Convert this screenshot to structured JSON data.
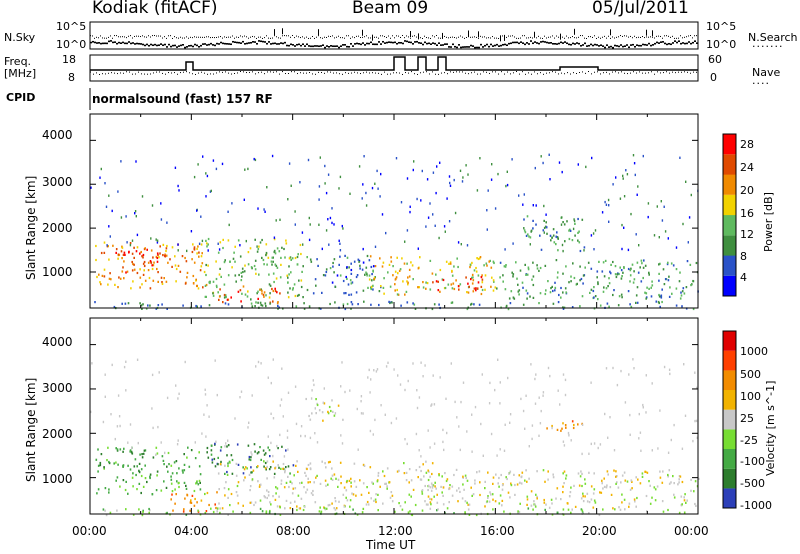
{
  "header": {
    "radar": "Kodiak (fitACF)",
    "beam": "Beam 09",
    "date": "05/Jul/2011",
    "nsky_label": "N.Sky",
    "nsearch_label": "N.Search",
    "nave_label": "Nave",
    "freq_label": "Freq.",
    "freq_unit": "[MHz]",
    "cpid_label": "CPID",
    "cpid_value": "normalsound (fast) 157 RF",
    "noise_ticks_left": [
      "10^5",
      "10^0"
    ],
    "noise_ticks_right": [
      "10^5",
      "10^0"
    ],
    "freq_ticks": [
      "18",
      "8"
    ],
    "nave_ticks": [
      "60",
      "0"
    ]
  },
  "colors": {
    "power": [
      "#0000ff",
      "#2a52c8",
      "#3f8f3f",
      "#5fba5f",
      "#f2d200",
      "#f08a00",
      "#e04a00",
      "#ff0000"
    ],
    "velocity": [
      "#2c3fb8",
      "#2d7d2d",
      "#44aa44",
      "#77dd33",
      "#c8c8c8",
      "#f2b300",
      "#f28c00",
      "#ff4000",
      "#e00000"
    ]
  },
  "chart_data": [
    {
      "type": "heatmap",
      "panel": "power",
      "xlabel": "",
      "ylabel": "Slant Range [km]",
      "yticks": [
        "4000",
        "3000",
        "2000",
        "1000"
      ],
      "ylim": [
        180,
        4600
      ],
      "xlim": [
        "00:00",
        "24:00"
      ],
      "colorbar": {
        "label": "Power [dB]",
        "ticks": [
          "28",
          "24",
          "20",
          "16",
          "12",
          "8",
          "4"
        ],
        "range": [
          0,
          32
        ]
      },
      "blobs": [
        {
          "t0": 0.2,
          "t1": 4.6,
          "r0": 650,
          "r1": 1700,
          "v": 22
        },
        {
          "t0": 1.0,
          "t1": 3.0,
          "r0": 1000,
          "r1": 1550,
          "v": 28
        },
        {
          "t0": 4.5,
          "t1": 8.4,
          "r0": 400,
          "r1": 1800,
          "v": 14
        },
        {
          "t0": 5.0,
          "t1": 7.5,
          "r0": 300,
          "r1": 700,
          "v": 26
        },
        {
          "t0": 8.5,
          "t1": 11.5,
          "r0": 500,
          "r1": 1400,
          "v": 8
        },
        {
          "t0": 11.0,
          "t1": 16.0,
          "r0": 500,
          "r1": 1400,
          "v": 18
        },
        {
          "t0": 13.5,
          "t1": 15.5,
          "r0": 600,
          "r1": 950,
          "v": 27
        },
        {
          "t0": 16.0,
          "t1": 24.0,
          "r0": 400,
          "r1": 1300,
          "v": 11
        },
        {
          "t0": 17.0,
          "t1": 19.5,
          "r0": 1500,
          "r1": 2300,
          "v": 10
        },
        {
          "t0": 0.0,
          "t1": 24.0,
          "r0": 180,
          "r1": 350,
          "v": 9
        }
      ]
    },
    {
      "type": "heatmap",
      "panel": "velocity",
      "xlabel": "Time UT",
      "ylabel": "Slant Range [km]",
      "yticks": [
        "4000",
        "3000",
        "2000",
        "1000"
      ],
      "xticks": [
        "00:00",
        "04:00",
        "08:00",
        "12:00",
        "16:00",
        "20:00",
        "00:00"
      ],
      "ylim": [
        180,
        4600
      ],
      "colorbar": {
        "label": "Velocity [m s^-1]",
        "ticks": [
          "1000",
          "500",
          "100",
          "25",
          "-25",
          "-100",
          "-500",
          "-1000"
        ]
      },
      "blobs": [
        {
          "t0": 0.2,
          "t1": 4.6,
          "r0": 650,
          "r1": 1700,
          "v": 2
        },
        {
          "t0": 4.6,
          "t1": 8.0,
          "r0": 1100,
          "r1": 1800,
          "v": 1
        },
        {
          "t0": 3.0,
          "t1": 5.0,
          "r0": 250,
          "r1": 700,
          "v": 6
        },
        {
          "t0": 5.0,
          "t1": 13.5,
          "r0": 300,
          "r1": 1400,
          "v": 4
        },
        {
          "t0": 13.0,
          "t1": 24.0,
          "r0": 300,
          "r1": 1200,
          "v": 4
        },
        {
          "t0": 18.0,
          "t1": 19.5,
          "r0": 2000,
          "r1": 2300,
          "v": 6
        },
        {
          "t0": 8.5,
          "t1": 10.0,
          "r0": 2300,
          "r1": 2800,
          "v": 4
        },
        {
          "t0": 0.0,
          "t1": 24.0,
          "r0": 180,
          "r1": 330,
          "v": 3
        }
      ]
    }
  ]
}
